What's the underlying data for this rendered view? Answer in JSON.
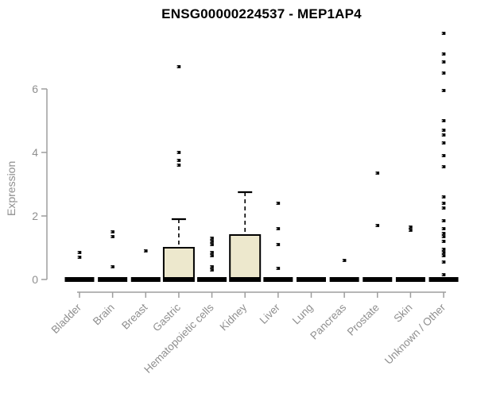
{
  "chart_data": {
    "type": "boxplot",
    "title": "ENSG00000224537 - MEP1AP4",
    "ylabel": "Expression",
    "xlabel": "",
    "ylim": [
      0,
      8.0
    ],
    "yticks": [
      "0",
      "2",
      "4",
      "6"
    ],
    "grid": false,
    "x_label_rotation_deg": 45,
    "legend": "none",
    "colors": {
      "box_fill": "#EDE8CD",
      "box_border": "#000000",
      "median_bar": "#000000",
      "outlier_point": "#000000",
      "axis_line": "#9e9e9e",
      "tick_text": "#8f8f8f",
      "title_text": "#000000",
      "background": "#ffffff"
    },
    "boxes": [
      {
        "category": "Bladder",
        "median": 0,
        "q1": 0,
        "q3": 0,
        "whisker_low": 0,
        "whisker_high": 0,
        "outliers": [
          0.85,
          0.7
        ]
      },
      {
        "category": "Brain",
        "median": 0,
        "q1": 0,
        "q3": 0,
        "whisker_low": 0,
        "whisker_high": 0,
        "outliers": [
          1.5,
          1.35,
          0.4
        ]
      },
      {
        "category": "Breast",
        "median": 0,
        "q1": 0,
        "q3": 0,
        "whisker_low": 0,
        "whisker_high": 0,
        "outliers": [
          0.9
        ]
      },
      {
        "category": "Gastric",
        "median": 0,
        "q1": 0,
        "q3": 1.0,
        "whisker_low": 0,
        "whisker_high": 1.9,
        "outliers": [
          6.7,
          4.0,
          3.75,
          3.6
        ]
      },
      {
        "category": "Hematopoietic cells",
        "median": 0,
        "q1": 0,
        "q3": 0,
        "whisker_low": 0,
        "whisker_high": 0,
        "outliers": [
          1.3,
          1.2,
          1.1,
          0.85,
          0.75,
          0.4,
          0.3
        ]
      },
      {
        "category": "Kidney",
        "median": 0,
        "q1": 0,
        "q3": 1.4,
        "whisker_low": 0,
        "whisker_high": 2.75,
        "outliers": []
      },
      {
        "category": "Liver",
        "median": 0,
        "q1": 0,
        "q3": 0,
        "whisker_low": 0,
        "whisker_high": 0,
        "outliers": [
          2.4,
          1.6,
          1.1,
          0.35
        ]
      },
      {
        "category": "Lung",
        "median": 0,
        "q1": 0,
        "q3": 0,
        "whisker_low": 0,
        "whisker_high": 0,
        "outliers": []
      },
      {
        "category": "Pancreas",
        "median": 0,
        "q1": 0,
        "q3": 0,
        "whisker_low": 0,
        "whisker_high": 0,
        "outliers": [
          0.6
        ]
      },
      {
        "category": "Prostate",
        "median": 0,
        "q1": 0,
        "q3": 0,
        "whisker_low": 0,
        "whisker_high": 0,
        "outliers": [
          3.35,
          1.7
        ]
      },
      {
        "category": "Skin",
        "median": 0,
        "q1": 0,
        "q3": 0,
        "whisker_low": 0,
        "whisker_high": 0,
        "outliers": [
          1.65,
          1.55
        ]
      },
      {
        "category": "Unknown / Other",
        "median": 0,
        "q1": 0,
        "q3": 0,
        "whisker_low": 0,
        "whisker_high": 0,
        "outliers": [
          7.75,
          7.1,
          6.85,
          6.5,
          5.95,
          5.0,
          4.7,
          4.55,
          4.3,
          3.9,
          3.55,
          2.6,
          2.4,
          2.25,
          1.85,
          1.6,
          1.45,
          1.35,
          1.2,
          0.95,
          0.85,
          0.75,
          0.55,
          0.15
        ]
      }
    ]
  }
}
